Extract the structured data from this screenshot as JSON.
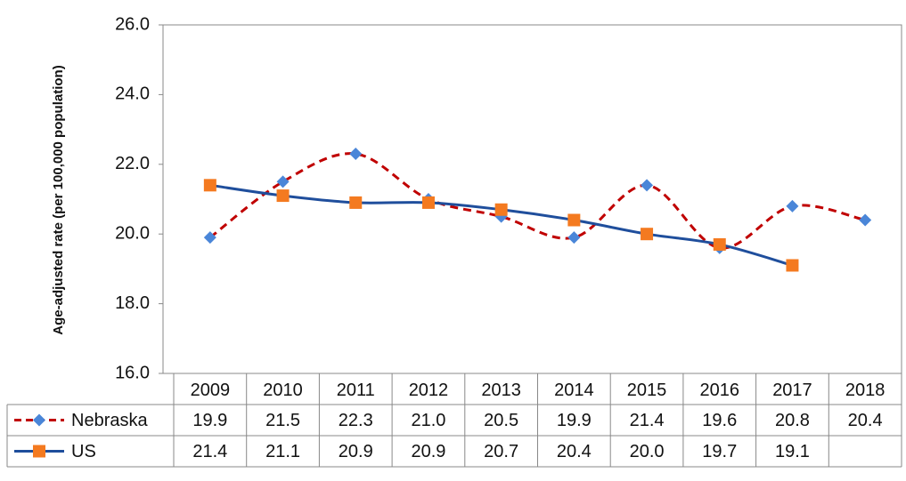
{
  "chart_data": {
    "type": "line",
    "y_label": "Age-adjusted rate (per 100,000 population)",
    "categories": [
      "2009",
      "2010",
      "2011",
      "2012",
      "2013",
      "2014",
      "2015",
      "2016",
      "2017",
      "2018"
    ],
    "series": [
      {
        "name": "Nebraska",
        "color": "#c00000",
        "marker_color": "#4a86d8",
        "marker": "diamond",
        "dash": true,
        "values": [
          19.9,
          21.5,
          22.3,
          21.0,
          20.5,
          19.9,
          21.4,
          19.6,
          20.8,
          20.4
        ],
        "value_labels": [
          "19.9",
          "21.5",
          "22.3",
          "21.0",
          "20.5",
          "19.9",
          "21.4",
          "19.6",
          "20.8",
          "20.4"
        ]
      },
      {
        "name": "US",
        "color": "#1f4e9c",
        "marker_color": "#f47a20",
        "marker": "square",
        "dash": false,
        "values": [
          21.4,
          21.1,
          20.9,
          20.9,
          20.7,
          20.4,
          20.0,
          19.7,
          19.1,
          null
        ],
        "value_labels": [
          "21.4",
          "21.1",
          "20.9",
          "20.9",
          "20.7",
          "20.4",
          "20.0",
          "19.7",
          "19.1",
          null
        ]
      }
    ],
    "ylim": [
      16,
      26
    ],
    "yticks": [
      {
        "value": 16,
        "label": "16.0"
      },
      {
        "value": 18,
        "label": "18.0"
      },
      {
        "value": 20,
        "label": "20.0"
      },
      {
        "value": 22,
        "label": "22.0"
      },
      {
        "value": 24,
        "label": "24.0"
      },
      {
        "value": 26,
        "label": "26.0"
      }
    ],
    "grid": false
  }
}
